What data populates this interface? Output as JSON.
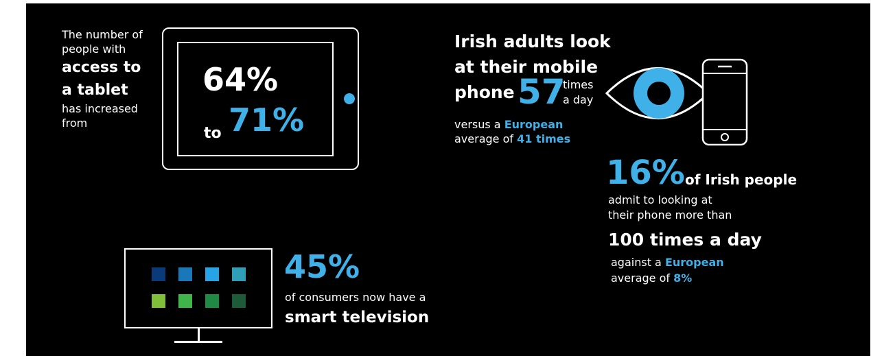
{
  "tablet": {
    "line1": "The number of",
    "line2": "people with",
    "line3": "access to",
    "line4": "a tablet",
    "line5": "has increased",
    "line6": "from",
    "from_pct": "64%",
    "to_word": "to",
    "to_pct": "71%"
  },
  "mobile": {
    "line1": "Irish adults look",
    "line2": "at their mobile",
    "line3": "phone",
    "count": "57",
    "times_word1": "times",
    "times_word2": "a day",
    "versus_prefix": "versus a",
    "versus_highlight": "European",
    "average_prefix": "average of",
    "average_highlight": "41 times"
  },
  "phone_habit": {
    "pct": "16%",
    "suffix": "of Irish people",
    "line1": "admit to looking at",
    "line2": "their phone more than",
    "headline": "100 times a day",
    "against_prefix": "against a",
    "against_highlight": "European",
    "average_prefix": "average of",
    "average_highlight": "8%"
  },
  "tv": {
    "pct": "45%",
    "line1": "of consumers now have a",
    "line2": "smart television",
    "tile_colors": [
      "#0b3a7a",
      "#1a78b8",
      "#27a4e6",
      "#2f9fb8",
      "#7fbf3a",
      "#3fb54a",
      "#1e8a43",
      "#1d5a3a"
    ]
  },
  "colors": {
    "background": "#000000",
    "accent": "#3fb0e8",
    "text": "#ffffff"
  },
  "icons": [
    "tablet-icon",
    "eye-icon",
    "smartphone-icon",
    "television-icon"
  ]
}
